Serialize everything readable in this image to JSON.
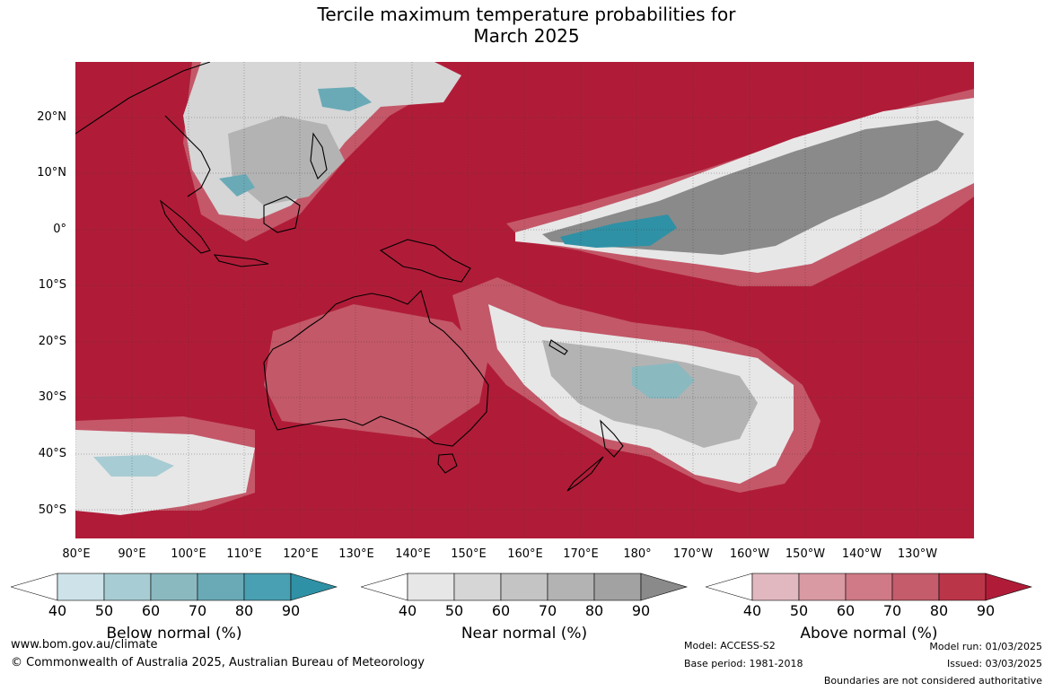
{
  "title": {
    "line1": "Tercile maximum temperature probabilities for",
    "line2": "March 2025"
  },
  "map": {
    "lat_labels": [
      "20°N",
      "10°N",
      "0°",
      "10°S",
      "20°S",
      "30°S",
      "40°S",
      "50°S"
    ],
    "lon_labels": [
      "80°E",
      "90°E",
      "100°E",
      "110°E",
      "120°E",
      "130°E",
      "140°E",
      "150°E",
      "160°E",
      "170°E",
      "180°",
      "170°W",
      "160°W",
      "150°W",
      "140°W",
      "130°W"
    ]
  },
  "legends": {
    "below": {
      "label": "Below normal (%)",
      "ticks": [
        "40",
        "50",
        "60",
        "70",
        "80",
        "90"
      ],
      "colors": [
        "#ffffff",
        "#cde3e9",
        "#a8ccd3",
        "#8bb9c0",
        "#6aaab7",
        "#4aa0b3",
        "#2f91a5"
      ]
    },
    "near": {
      "label": "Near normal (%)",
      "ticks": [
        "40",
        "50",
        "60",
        "70",
        "80",
        "90"
      ],
      "colors": [
        "#ffffff",
        "#e7e7e7",
        "#d6d6d6",
        "#c4c4c4",
        "#b3b3b3",
        "#a2a2a2",
        "#8a8a8a"
      ]
    },
    "above": {
      "label": "Above normal (%)",
      "ticks": [
        "40",
        "50",
        "60",
        "70",
        "80",
        "90"
      ],
      "colors": [
        "#ffffff",
        "#e2b8c0",
        "#d99aa4",
        "#cf7a86",
        "#c55c6b",
        "#bb3549",
        "#b01c38"
      ]
    }
  },
  "footer": {
    "website": "www.bom.gov.au/climate",
    "copyright": "© Commonwealth of Australia 2025, Australian Bureau of Meteorology",
    "model": "Model: ACCESS-S2",
    "base_period": "Base period: 1981-2018",
    "model_run": "Model run: 01/03/2025",
    "issued": "Issued: 03/03/2025",
    "disclaimer": "Boundaries are not considered authoritative"
  }
}
